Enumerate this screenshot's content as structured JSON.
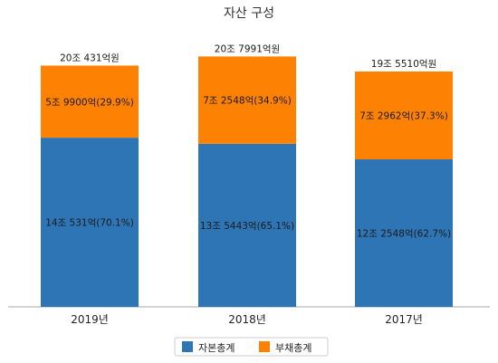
{
  "chart_data": {
    "type": "bar",
    "stacked": true,
    "title": "자산 구성",
    "categories": [
      "2019년",
      "2018년",
      "2017년"
    ],
    "series": [
      {
        "name": "자본총계",
        "color": "#2e75b6",
        "values": [
          14.0531,
          13.5443,
          12.2548
        ],
        "labels": [
          "14조 531억(70.1%)",
          "13조 5443억(65.1%)",
          "12조 2548억(62.7%)"
        ]
      },
      {
        "name": "부채총계",
        "color": "#fd8204",
        "values": [
          5.99,
          7.2548,
          7.2962
        ],
        "labels": [
          "5조 9900억(29.9%)",
          "7조 2548억(34.9%)",
          "7조 2962억(37.3%)"
        ]
      }
    ],
    "totals": [
      "20조 431억원",
      "20조 7991억원",
      "19조 5510억원"
    ],
    "legend_position": "bottom",
    "grid": false
  }
}
